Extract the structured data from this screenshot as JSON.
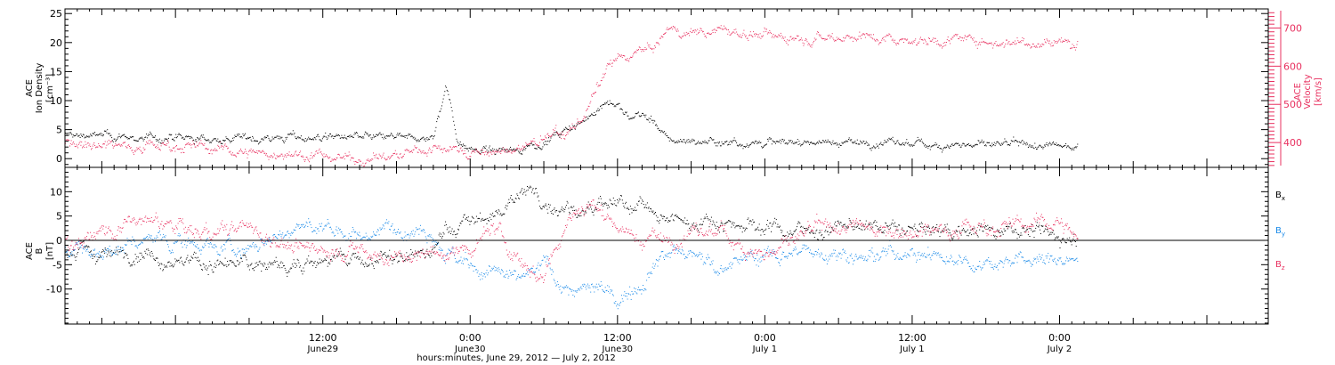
{
  "colors": {
    "black": "#000000",
    "pink": "#e8305f",
    "blue": "#1a8ae8",
    "frame": "#000000"
  },
  "xaxis": {
    "title": "hours:minutes, June 29, 2012 — July  2, 2012",
    "range_hours": [
      -9,
      89
    ],
    "ticks": [
      {
        "h": 12,
        "time": "12:00",
        "date": "June29"
      },
      {
        "h": 24,
        "time": "0:00",
        "date": "June30"
      },
      {
        "h": 36,
        "time": "12:00",
        "date": "June30"
      },
      {
        "h": 48,
        "time": "0:00",
        "date": "July 1"
      },
      {
        "h": 60,
        "time": "12:00",
        "date": "July 1"
      },
      {
        "h": 72,
        "time": "0:00",
        "date": "July 2"
      }
    ]
  },
  "chart_data": [
    {
      "type": "scatter",
      "panel": "top",
      "ylabel_left": [
        "ACE",
        "Ion Density",
        "[cm⁻³]"
      ],
      "ylabel_right": [
        "ACE",
        "Velocity",
        "[km/s]"
      ],
      "ylim_left": [
        -1.5,
        25.8
      ],
      "ytick_left": [
        0,
        5,
        10,
        15,
        20,
        25
      ],
      "ylim_right": [
        335,
        750
      ],
      "ytick_right": [
        400,
        500,
        600,
        700
      ],
      "series": [
        {
          "axis": "left",
          "color": "black",
          "points": [
            [
              -9,
              4.2
            ],
            [
              -6,
              4
            ],
            [
              -3,
              3.6
            ],
            [
              0,
              3.5
            ],
            [
              3,
              3.4
            ],
            [
              6,
              3.6
            ],
            [
              9,
              3.7
            ],
            [
              12,
              3.8
            ],
            [
              15,
              3.8
            ],
            [
              18,
              3.6
            ],
            [
              20,
              3.5
            ],
            [
              21,
              3.7
            ],
            [
              22,
              13
            ],
            [
              22.5,
              8
            ],
            [
              23,
              3
            ],
            [
              24,
              2
            ],
            [
              26,
              1.2
            ],
            [
              28,
              1.8
            ],
            [
              30,
              3
            ],
            [
              31,
              4
            ],
            [
              33,
              6
            ],
            [
              34,
              8
            ],
            [
              35,
              10
            ],
            [
              36,
              9
            ],
            [
              37,
              7
            ],
            [
              38,
              8
            ],
            [
              39,
              6
            ],
            [
              40,
              3.3
            ],
            [
              44,
              3
            ],
            [
              48,
              2.8
            ],
            [
              52,
              3
            ],
            [
              56,
              2.8
            ],
            [
              60,
              2.6
            ],
            [
              64,
              2.5
            ],
            [
              68,
              2.3
            ],
            [
              72,
              2.2
            ],
            [
              73.5,
              2.4
            ]
          ]
        },
        {
          "axis": "right",
          "color": "pink",
          "points": [
            [
              -9,
              405
            ],
            [
              -4,
              395
            ],
            [
              0,
              395
            ],
            [
              3,
              385
            ],
            [
              6,
              375
            ],
            [
              9,
              370
            ],
            [
              12,
              365
            ],
            [
              15,
              360
            ],
            [
              18,
              365
            ],
            [
              20,
              380
            ],
            [
              22,
              390
            ],
            [
              24,
              375
            ],
            [
              26,
              370
            ],
            [
              28,
              385
            ],
            [
              30,
              410
            ],
            [
              32,
              430
            ],
            [
              33,
              460
            ],
            [
              34,
              520
            ],
            [
              35,
              580
            ],
            [
              36,
              620
            ],
            [
              37,
              630
            ],
            [
              38,
              640
            ],
            [
              39,
              650
            ],
            [
              40,
              690
            ],
            [
              44,
              695
            ],
            [
              48,
              680
            ],
            [
              52,
              680
            ],
            [
              56,
              680
            ],
            [
              60,
              670
            ],
            [
              64,
              670
            ],
            [
              68,
              665
            ],
            [
              72,
              665
            ],
            [
              73.5,
              665
            ]
          ]
        }
      ]
    },
    {
      "type": "scatter",
      "panel": "bottom",
      "ylabel_left": [
        "ACE",
        "B",
        "[nT]"
      ],
      "ylim": [
        -17.2,
        15
      ],
      "yticks": [
        -10,
        -5,
        0,
        5,
        10
      ],
      "legend": [
        {
          "label": "B",
          "sub": "x",
          "color": "black"
        },
        {
          "label": "B",
          "sub": "y",
          "color": "blue"
        },
        {
          "label": "B",
          "sub": "z",
          "color": "pink"
        }
      ],
      "series": [
        {
          "name": "Bx",
          "color": "black",
          "points": [
            [
              -9,
              -2
            ],
            [
              -6,
              -3
            ],
            [
              -3,
              -2
            ],
            [
              0,
              -4
            ],
            [
              3,
              -5
            ],
            [
              6,
              -5
            ],
            [
              9,
              -4.8
            ],
            [
              12,
              -4
            ],
            [
              15,
              -4
            ],
            [
              18,
              -3.8
            ],
            [
              20,
              -3
            ],
            [
              21,
              -2
            ],
            [
              22,
              2
            ],
            [
              23,
              3
            ],
            [
              24,
              4
            ],
            [
              26,
              5
            ],
            [
              28,
              10
            ],
            [
              29,
              10
            ],
            [
              30,
              8
            ],
            [
              32,
              7
            ],
            [
              34,
              6
            ],
            [
              36,
              7
            ],
            [
              38,
              8
            ],
            [
              39,
              5
            ],
            [
              40,
              4
            ],
            [
              44,
              4
            ],
            [
              48,
              3
            ],
            [
              52,
              2
            ],
            [
              56,
              3
            ],
            [
              60,
              2
            ],
            [
              64,
              2
            ],
            [
              68,
              3
            ],
            [
              72,
              1
            ],
            [
              73.5,
              0
            ]
          ]
        },
        {
          "name": "By",
          "color": "blue",
          "points": [
            [
              -9,
              -1
            ],
            [
              -6,
              -3
            ],
            [
              -3,
              0
            ],
            [
              0,
              0
            ],
            [
              3,
              -1
            ],
            [
              6,
              -2
            ],
            [
              9,
              2
            ],
            [
              12,
              3
            ],
            [
              15,
              1
            ],
            [
              18,
              3
            ],
            [
              20,
              3
            ],
            [
              21,
              2
            ],
            [
              22,
              -2
            ],
            [
              24,
              -6
            ],
            [
              26,
              -7
            ],
            [
              28,
              -8
            ],
            [
              30,
              -5
            ],
            [
              32,
              -10
            ],
            [
              34,
              -10
            ],
            [
              36,
              -12
            ],
            [
              38,
              -8
            ],
            [
              39,
              -4
            ],
            [
              40,
              -2
            ],
            [
              44,
              -5
            ],
            [
              48,
              -3
            ],
            [
              52,
              -2
            ],
            [
              56,
              -3
            ],
            [
              60,
              -2
            ],
            [
              64,
              -4
            ],
            [
              68,
              -4
            ],
            [
              72,
              -4
            ],
            [
              73.5,
              -5
            ]
          ]
        },
        {
          "name": "Bz",
          "color": "pink",
          "points": [
            [
              -9,
              0
            ],
            [
              -6,
              2
            ],
            [
              -3,
              4
            ],
            [
              0,
              3
            ],
            [
              3,
              1
            ],
            [
              6,
              3
            ],
            [
              9,
              -1
            ],
            [
              12,
              -2
            ],
            [
              15,
              -2
            ],
            [
              18,
              -4
            ],
            [
              20,
              -3
            ],
            [
              21,
              -2
            ],
            [
              22,
              -3
            ],
            [
              24,
              -2
            ],
            [
              26,
              3
            ],
            [
              28,
              -5
            ],
            [
              30,
              -7
            ],
            [
              32,
              5
            ],
            [
              34,
              8
            ],
            [
              36,
              3
            ],
            [
              38,
              0
            ],
            [
              39,
              1
            ],
            [
              40,
              0
            ],
            [
              44,
              2
            ],
            [
              48,
              -3
            ],
            [
              52,
              2
            ],
            [
              56,
              3
            ],
            [
              60,
              2
            ],
            [
              64,
              3
            ],
            [
              68,
              3
            ],
            [
              72,
              4
            ],
            [
              73.5,
              0
            ]
          ]
        }
      ]
    }
  ]
}
